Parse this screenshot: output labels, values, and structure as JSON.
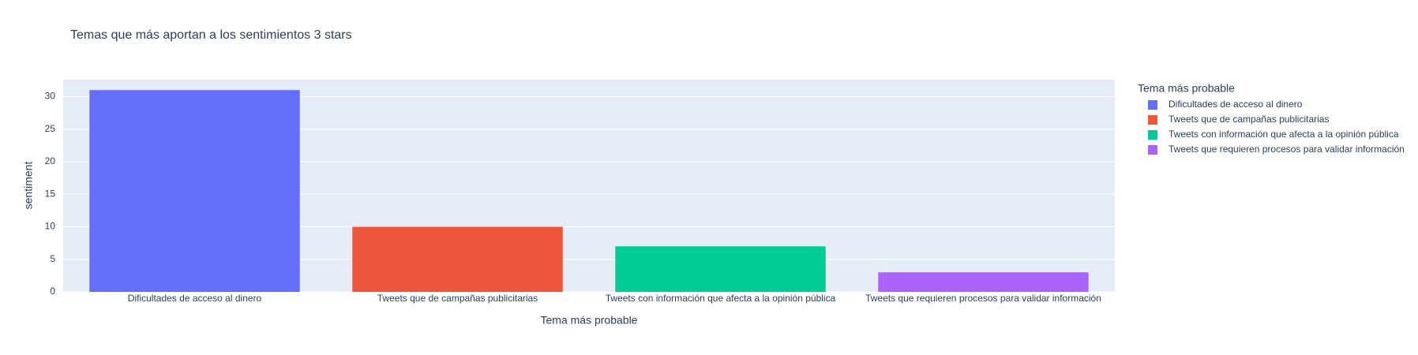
{
  "chart_data": {
    "type": "bar",
    "title": "Temas que más aportan a los sentimientos 3 stars",
    "x_label": "Tema más probable",
    "y_label": "sentiment",
    "legend_title": "Tema más probable",
    "categories": [
      "Dificultades de acceso al dinero",
      "Tweets que de campañas publicitarias",
      "Tweets con información que afecta a la opinión pública",
      "Tweets que requieren procesos para validar información"
    ],
    "values": [
      31,
      10,
      7,
      3
    ],
    "colors": [
      "#636efa",
      "#ef553b",
      "#00cc96",
      "#ab63fa"
    ],
    "ylim": [
      0,
      32.6
    ],
    "yticks": [
      0,
      5,
      10,
      15,
      20,
      25,
      30
    ],
    "grid": true,
    "legend": "right"
  }
}
